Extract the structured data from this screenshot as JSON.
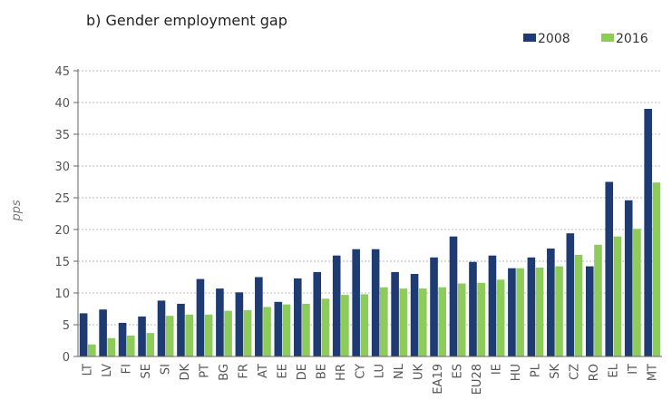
{
  "chart_data": {
    "type": "bar",
    "title": "b) Gender employment gap",
    "ylabel": "pps",
    "xlabel": "",
    "ylim": [
      0,
      45
    ],
    "yticks": [
      0,
      5,
      10,
      15,
      20,
      25,
      30,
      35,
      40,
      45
    ],
    "grid": "horizontal dashed",
    "legend_position": "top-right",
    "categories": [
      "LT",
      "LV",
      "FI",
      "SE",
      "SI",
      "DK",
      "PT",
      "BG",
      "FR",
      "AT",
      "EE",
      "DE",
      "BE",
      "HR",
      "CY",
      "LU",
      "NL",
      "UK",
      "EA19",
      "ES",
      "EU28",
      "IE",
      "HU",
      "PL",
      "SK",
      "CZ",
      "RO",
      "EL",
      "IT",
      "MT"
    ],
    "series": [
      {
        "name": "2008",
        "color": "#1f3b73",
        "values": [
          6.8,
          7.4,
          5.3,
          6.3,
          8.8,
          8.3,
          12.2,
          10.7,
          10.1,
          12.5,
          8.6,
          12.3,
          13.3,
          15.9,
          16.9,
          16.9,
          13.3,
          13.0,
          15.6,
          18.9,
          14.9,
          15.9,
          13.9,
          15.6,
          17.0,
          19.4,
          14.2,
          27.5,
          24.6,
          39.0
        ]
      },
      {
        "name": "2016",
        "color": "#8dcb5a",
        "values": [
          1.9,
          2.9,
          3.3,
          3.7,
          6.4,
          6.6,
          6.6,
          7.2,
          7.3,
          7.8,
          8.2,
          8.3,
          9.1,
          9.7,
          9.8,
          10.9,
          10.7,
          10.7,
          10.9,
          11.5,
          11.6,
          12.1,
          13.9,
          14.0,
          14.2,
          16.0,
          17.6,
          18.9,
          20.1,
          27.4
        ]
      }
    ]
  }
}
